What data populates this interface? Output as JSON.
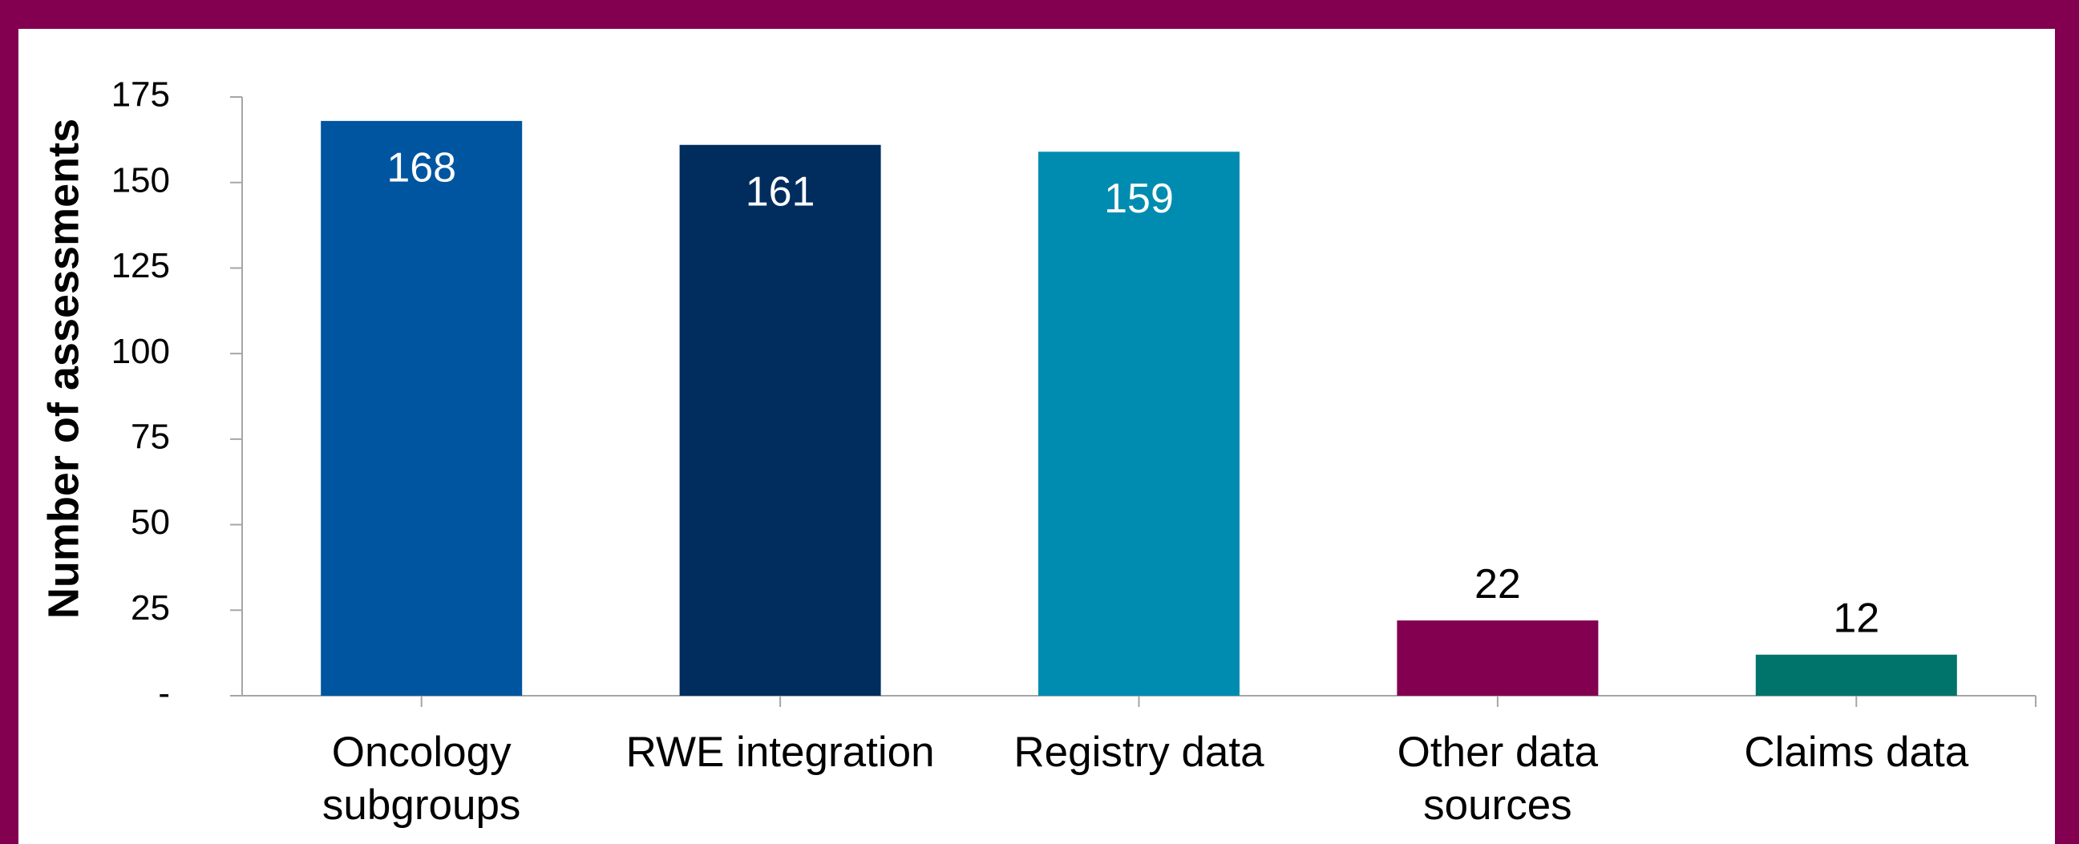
{
  "chart_data": {
    "type": "bar",
    "y_axis_label": "Number of assessments",
    "categories": [
      "Oncology subgroups",
      "RWE integration",
      "Registry data",
      "Other data sources",
      "Claims data"
    ],
    "values": [
      168,
      161,
      159,
      22,
      12
    ],
    "colors": [
      "#0055a0",
      "#002d5e",
      "#008cb0",
      "#830051",
      "#00746b"
    ],
    "ylim": [
      0,
      175
    ],
    "yticks": [
      {
        "value": 0,
        "label": "-"
      },
      25,
      50,
      75,
      100,
      125,
      150,
      175
    ],
    "grid": false
  }
}
